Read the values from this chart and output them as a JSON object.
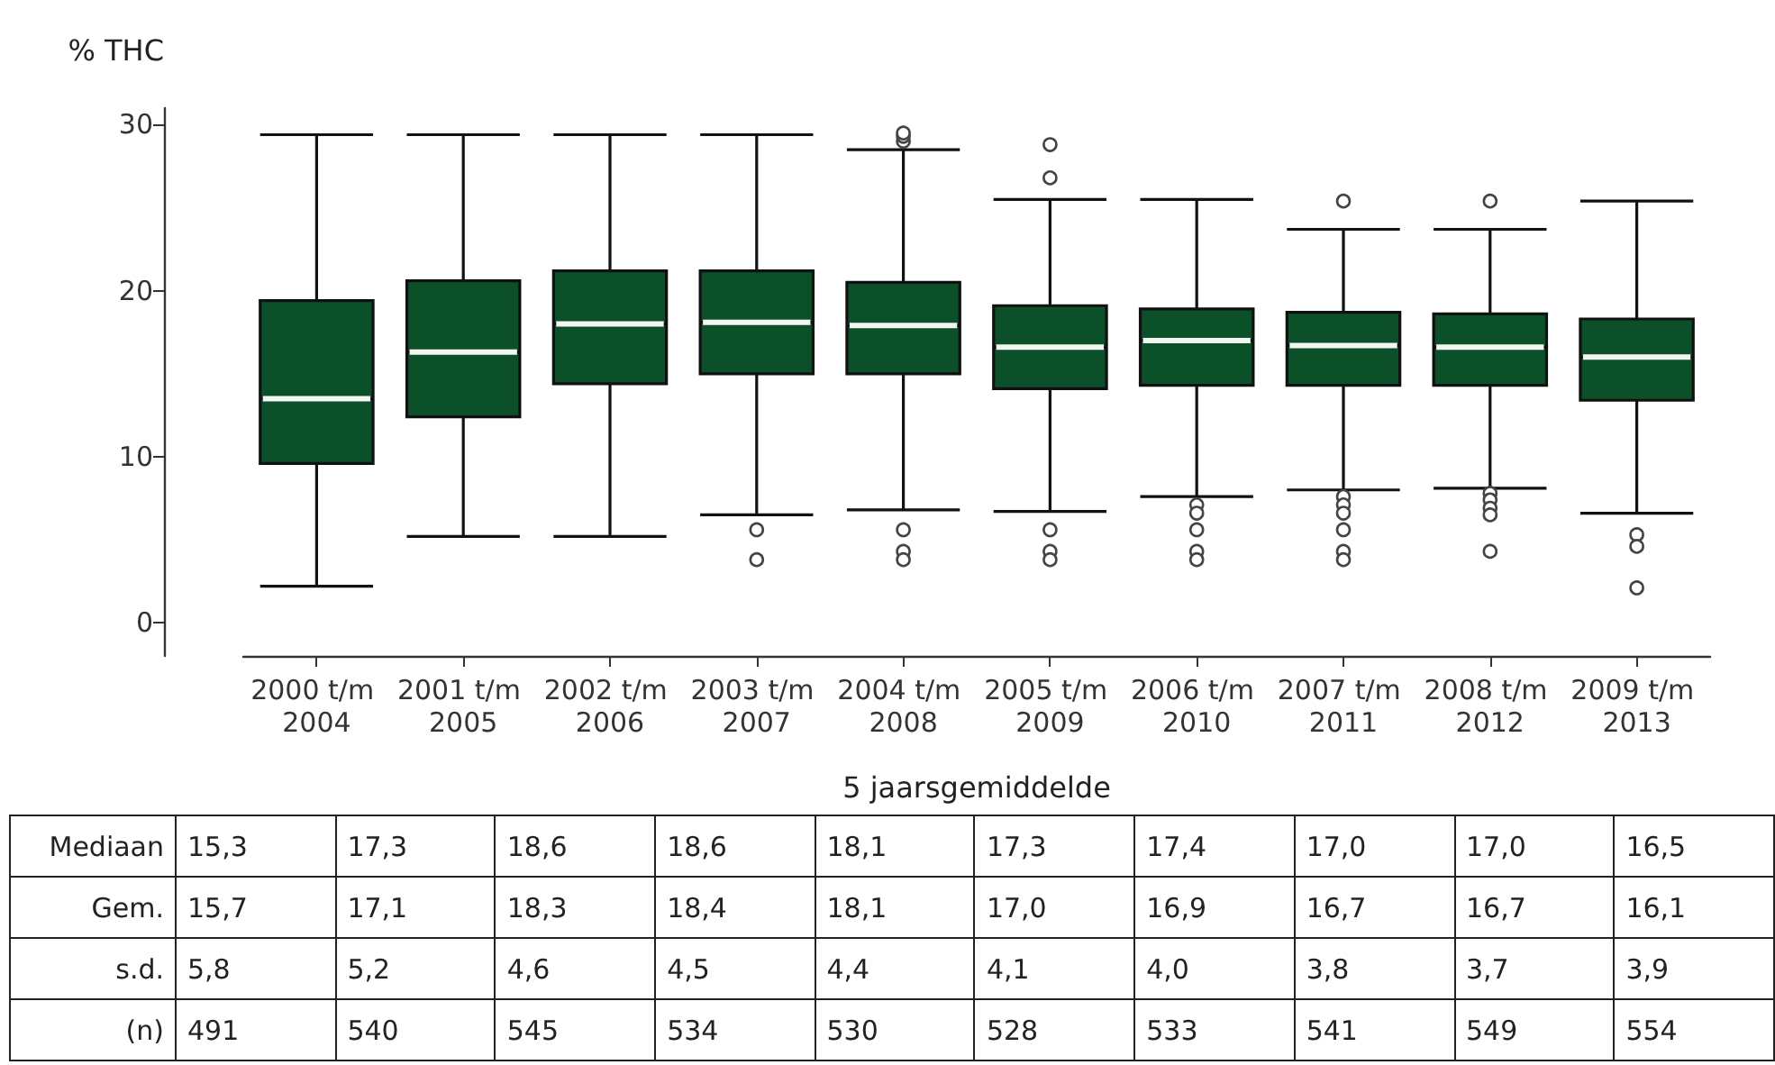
{
  "chart_data": [
    {
      "type": "box",
      "ylabel": "% THC",
      "xlabel": "5 jaarsgemiddelde",
      "color": "#0b5028",
      "categories": [
        "2000 t/m 2004",
        "2001 t/m 2005",
        "2002 t/m 2006",
        "2003 t/m 2007",
        "2004 t/m 2008",
        "2005 t/m 2009",
        "2006 t/m 2010",
        "2007 t/m 2011",
        "2008 t/m 2012",
        "2009 t/m 2013"
      ],
      "boxes": [
        {
          "low": 2.2,
          "q1": 9.6,
          "median": 13.5,
          "q3": 19.4,
          "high": 29.4
        },
        {
          "low": 5.2,
          "q1": 12.4,
          "median": 16.3,
          "q3": 20.6,
          "high": 29.4
        },
        {
          "low": 5.2,
          "q1": 14.4,
          "median": 18.0,
          "q3": 21.2,
          "high": 29.4
        },
        {
          "low": 6.5,
          "q1": 15.0,
          "median": 18.1,
          "q3": 21.2,
          "high": 29.4,
          "outliers": [
            5.6,
            3.8
          ]
        },
        {
          "low": 6.8,
          "q1": 15.0,
          "median": 17.9,
          "q3": 20.5,
          "high": 28.5,
          "outliers": [
            29.0,
            29.3,
            29.5,
            5.6,
            4.3,
            3.8
          ]
        },
        {
          "low": 6.7,
          "q1": 14.1,
          "median": 16.6,
          "q3": 19.1,
          "high": 25.5,
          "outliers": [
            28.8,
            26.8,
            5.6,
            4.3,
            3.8
          ]
        },
        {
          "low": 7.6,
          "q1": 14.3,
          "median": 17.0,
          "q3": 18.9,
          "high": 25.5,
          "outliers": [
            7.1,
            6.6,
            5.6,
            4.3,
            3.8
          ]
        },
        {
          "low": 8.0,
          "q1": 14.3,
          "median": 16.7,
          "q3": 18.7,
          "high": 23.7,
          "outliers": [
            25.4,
            7.6,
            7.1,
            6.6,
            5.6,
            4.3,
            3.8
          ]
        },
        {
          "low": 8.1,
          "q1": 14.3,
          "median": 16.6,
          "q3": 18.6,
          "high": 23.7,
          "outliers": [
            25.4,
            7.8,
            7.4,
            6.9,
            6.5,
            4.3
          ]
        },
        {
          "low": 6.6,
          "q1": 13.4,
          "median": 16.0,
          "q3": 18.3,
          "high": 25.4,
          "outliers": [
            5.3,
            4.6,
            2.1
          ]
        }
      ],
      "ylim": [
        -2,
        31
      ],
      "yticks": [
        0,
        10,
        20,
        30
      ]
    },
    {
      "type": "other",
      "y_categories": [
        "Mediaan",
        "Gem.",
        "s.d.",
        "(n)"
      ],
      "cell_labels": [
        [
          "15,3",
          "17,3",
          "18,6",
          "18,6",
          "18,1",
          "17,3",
          "17,4",
          "17,0",
          "17,0",
          "16,5"
        ],
        [
          "15,7",
          "17,1",
          "18,3",
          "18,4",
          "18,1",
          "17,0",
          "16,9",
          "16,7",
          "16,7",
          "16,1"
        ],
        [
          "5,8",
          "5,2",
          "4,6",
          "4,5",
          "4,4",
          "4,1",
          "4,0",
          "3,8",
          "3,7",
          "3,9"
        ],
        [
          "491",
          "540",
          "545",
          "534",
          "530",
          "528",
          "533",
          "541",
          "549",
          "554"
        ]
      ]
    }
  ]
}
